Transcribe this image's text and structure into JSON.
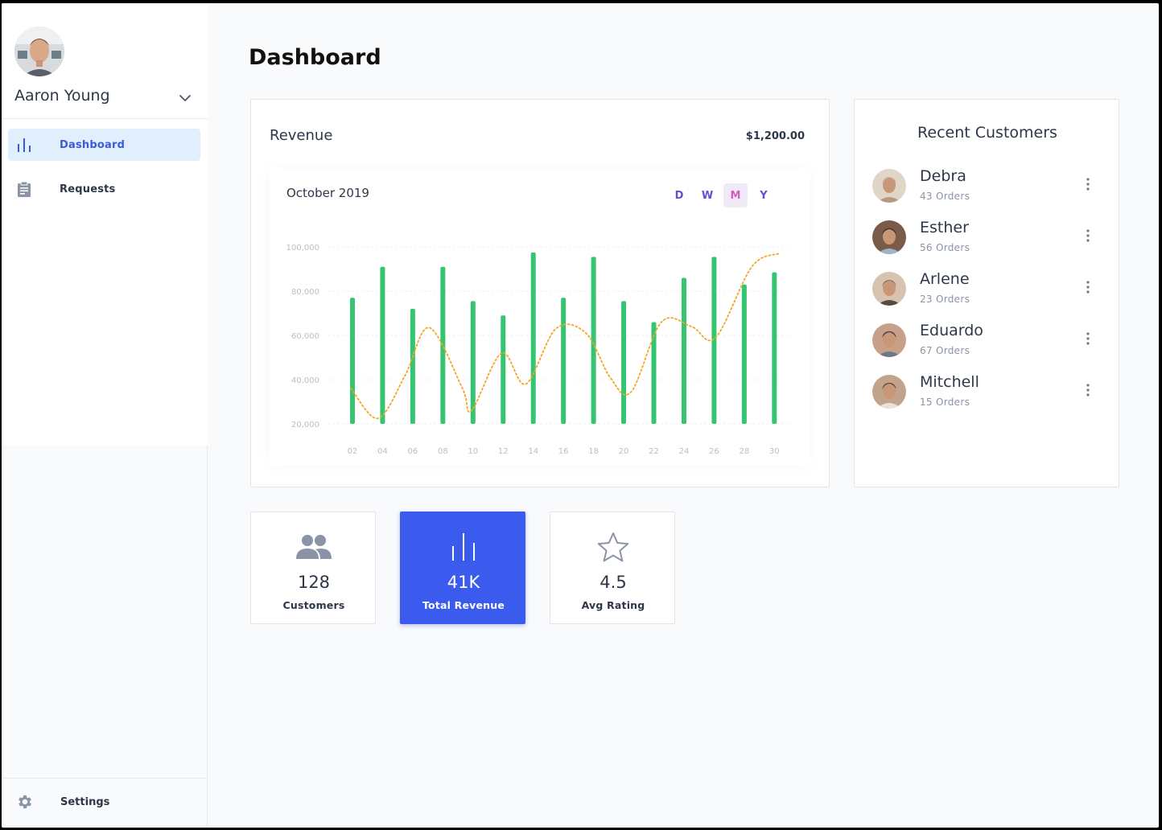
{
  "user": {
    "name": "Aaron Young"
  },
  "sidebar": {
    "items": [
      {
        "label": "Dashboard",
        "icon": "bar-chart-icon",
        "active": true
      },
      {
        "label": "Requests",
        "icon": "clipboard-icon",
        "active": false
      }
    ],
    "settings": {
      "label": "Settings",
      "icon": "gear-icon"
    }
  },
  "page": {
    "title": "Dashboard"
  },
  "revenue": {
    "title": "Revenue",
    "amount": "$1,200.00",
    "period": "October 2019",
    "ranges": [
      {
        "label": "D",
        "active": false
      },
      {
        "label": "W",
        "active": false
      },
      {
        "label": "M",
        "active": true
      },
      {
        "label": "Y",
        "active": false
      }
    ]
  },
  "chart_data": {
    "type": "bar",
    "categories": [
      "02",
      "04",
      "06",
      "08",
      "10",
      "12",
      "14",
      "16",
      "18",
      "20",
      "22",
      "24",
      "26",
      "28",
      "30"
    ],
    "y_tick_labels": [
      "100,000",
      "80,000",
      "60,000",
      "40,000",
      "20,000"
    ],
    "ylim": [
      20000,
      100000
    ],
    "series": [
      {
        "values": [
          77000,
          91000,
          72000,
          91000,
          75500,
          69000,
          97500,
          77000,
          95500,
          75500,
          66000,
          86000,
          95500,
          83000,
          88500
        ],
        "color": "#35c46f",
        "kind": "bar"
      },
      {
        "points": [
          [
            1.2,
            36000
          ],
          [
            2.1,
            22500
          ],
          [
            3,
            42000
          ],
          [
            3.8,
            63500
          ],
          [
            4.9,
            36000
          ],
          [
            5.2,
            26000
          ],
          [
            6.2,
            52000
          ],
          [
            7,
            38000
          ],
          [
            8,
            63000
          ],
          [
            9,
            61000
          ],
          [
            9.8,
            41000
          ],
          [
            10.5,
            34500
          ],
          [
            11.5,
            66000
          ],
          [
            12.5,
            64000
          ],
          [
            13.3,
            59000
          ],
          [
            14.5,
            91000
          ],
          [
            15.4,
            97000
          ]
        ],
        "color": "#f5a623",
        "kind": "line",
        "style": "dotted"
      }
    ],
    "grid": true
  },
  "customers": {
    "title": "Recent Customers",
    "items": [
      {
        "name": "Debra",
        "orders": "43 Orders",
        "avatar_colors": [
          "#c9b8a6",
          "#e0d6c8",
          "#b99880"
        ]
      },
      {
        "name": "Esther",
        "orders": "56 Orders",
        "avatar_colors": [
          "#3b2d26",
          "#7a5b4a",
          "#9fb6c8"
        ]
      },
      {
        "name": "Arlene",
        "orders": "23 Orders",
        "avatar_colors": [
          "#8e7a6a",
          "#d6c4b0",
          "#5a4a3e"
        ]
      },
      {
        "name": "Eduardo",
        "orders": "67 Orders",
        "avatar_colors": [
          "#2f3a4a",
          "#c8a08a",
          "#6a7888"
        ]
      },
      {
        "name": "Mitchell",
        "orders": "15 Orders",
        "avatar_colors": [
          "#5a4636",
          "#c2a48c",
          "#e8e2da"
        ]
      }
    ]
  },
  "stats": [
    {
      "value": "128",
      "label": "Customers",
      "icon": "users-icon",
      "primary": false
    },
    {
      "value": "41K",
      "label": "Total Revenue",
      "icon": "bar-chart-icon",
      "primary": true
    },
    {
      "value": "4.5",
      "label": "Avg Rating",
      "icon": "star-icon",
      "primary": false
    }
  ]
}
